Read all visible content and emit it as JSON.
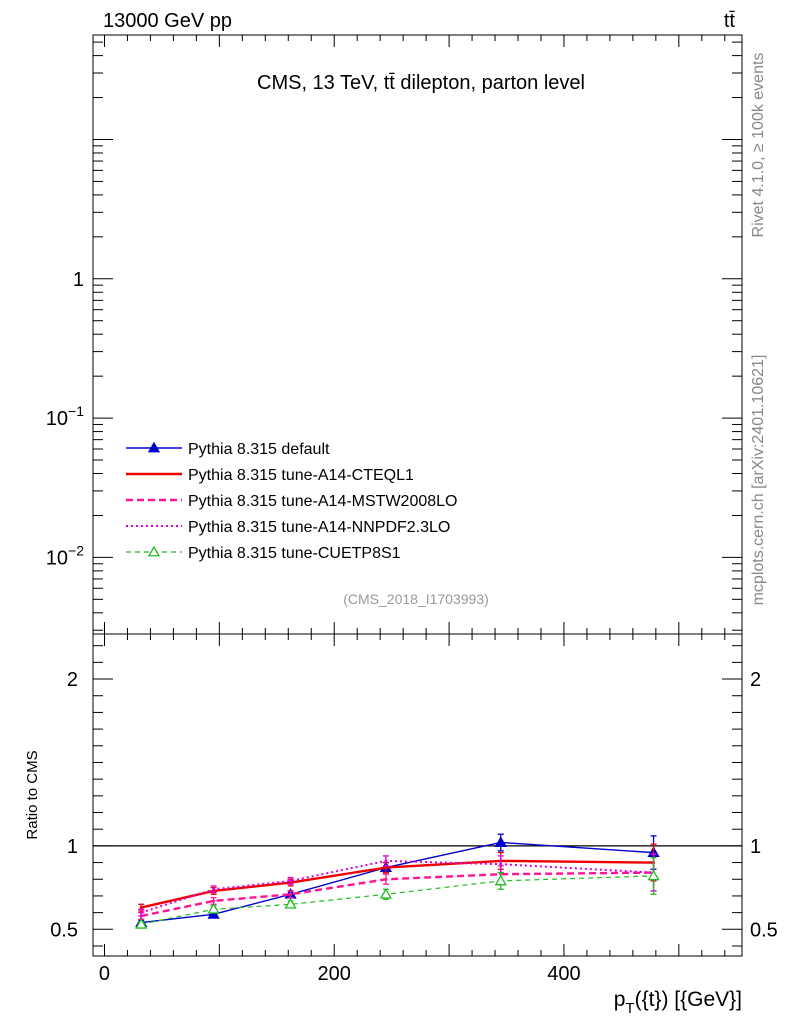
{
  "header": {
    "left": "13000 GeV pp",
    "right": "tt̄"
  },
  "side": {
    "top": "Rivet 4.1.0, ≥ 100k events",
    "bottom": "mcplots.cern.ch [arXiv:2401.10621]"
  },
  "chart_data": {
    "type": "line",
    "title": "CMS, 13 TeV, tt̄ dilepton, parton level",
    "analysis_label": "(CMS_2018_I1703993)",
    "xlabel_main": "p",
    "xlabel_sub": "T",
    "xlabel_rest": "({t}) [{GeV}]",
    "ylabel_ratio": "Ratio to CMS",
    "xlim": [
      -10,
      555
    ],
    "main_ylim_log10": [
      -2.55,
      1.75
    ],
    "ratio_ylim": [
      0.34,
      2.27
    ],
    "x_ticks": [
      {
        "value": 0,
        "label": "0"
      },
      {
        "value": 200,
        "label": "200"
      },
      {
        "value": 400,
        "label": "400"
      }
    ],
    "main_y_ticks": [
      {
        "value": 1,
        "label": "1"
      },
      {
        "value": 0.1,
        "base": "10",
        "exp": "−1"
      },
      {
        "value": 0.01,
        "base": "10",
        "exp": "−2"
      }
    ],
    "ratio_y_ticks": [
      {
        "value": 0.5,
        "label": "0.5"
      },
      {
        "value": 1,
        "label": "1"
      },
      {
        "value": 2,
        "label": "2"
      }
    ],
    "reference_line": 1,
    "x": [
      32,
      95,
      162,
      245,
      345,
      478
    ],
    "series": [
      {
        "name": "Pythia 8.315 default",
        "color": "#0000cc",
        "dash": "solid",
        "width": 1.4,
        "marker": "triangle-filled",
        "values": [
          0.54,
          0.59,
          0.71,
          0.87,
          1.02,
          0.96
        ],
        "errors": [
          0.015,
          0.015,
          0.02,
          0.03,
          0.05,
          0.1
        ]
      },
      {
        "name": "Pythia 8.315 tune-A14-CTEQL1",
        "color": "#ee0000",
        "dash": "solid",
        "width": 2.4,
        "marker": "none",
        "values": [
          0.63,
          0.73,
          0.78,
          0.87,
          0.91,
          0.9
        ],
        "errors": [
          0.02,
          0.02,
          0.02,
          0.03,
          0.05,
          0.11
        ]
      },
      {
        "name": "Pythia 8.315 tune-A14-MSTW2008LO",
        "color": "#ff1493",
        "dash": "dashed",
        "width": 2.4,
        "marker": "none",
        "values": [
          0.58,
          0.67,
          0.71,
          0.8,
          0.83,
          0.84
        ],
        "errors": [
          0.02,
          0.02,
          0.02,
          0.03,
          0.05,
          0.11
        ]
      },
      {
        "name": "Pythia 8.315 tune-A14-NNPDF2.3LO",
        "color": "#dd00dd",
        "dash": "dotted",
        "width": 2.0,
        "marker": "none",
        "values": [
          0.6,
          0.74,
          0.79,
          0.91,
          0.89,
          0.84
        ],
        "errors": [
          0.02,
          0.02,
          0.02,
          0.03,
          0.05,
          0.11
        ]
      },
      {
        "name": "Pythia 8.315 tune-CUETP8S1",
        "color": "#22bb22",
        "dash": "dashed-fine",
        "width": 1.2,
        "marker": "triangle-open",
        "values": [
          0.53,
          0.62,
          0.65,
          0.71,
          0.79,
          0.82
        ],
        "errors": [
          0.015,
          0.02,
          0.02,
          0.03,
          0.05,
          0.11
        ]
      }
    ]
  }
}
